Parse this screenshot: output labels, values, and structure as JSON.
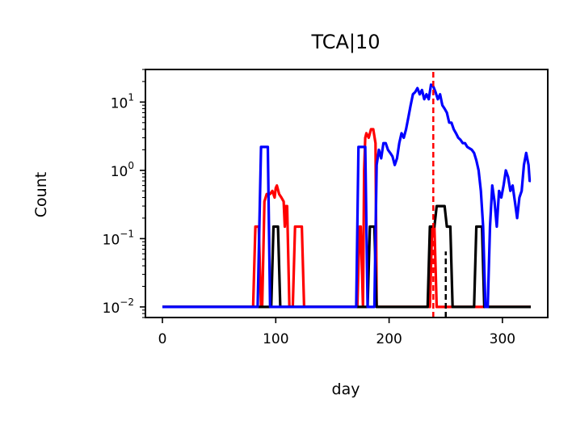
{
  "chart_data": {
    "type": "line",
    "title": "TCA|10",
    "xlabel": "day",
    "ylabel": "Count",
    "xlim": [
      -15,
      340
    ],
    "ylim": [
      0.007,
      30
    ],
    "yscale": "log",
    "grid": false,
    "x_ticks": [
      0,
      100,
      200,
      300
    ],
    "y_ticks": [
      {
        "value": 0.01,
        "base": "10",
        "exp": "−2"
      },
      {
        "value": 0.1,
        "base": "10",
        "exp": "−1"
      },
      {
        "value": 1,
        "base": "10",
        "exp": "0"
      },
      {
        "value": 10,
        "base": "10",
        "exp": "1"
      }
    ],
    "vlines": [
      {
        "x": 239,
        "color": "#ff0000",
        "style": "dashed",
        "y_range": [
          0.007,
          30
        ]
      },
      {
        "x": 250,
        "color": "#000000",
        "style": "dashed",
        "y_range": [
          0.007,
          0.065
        ]
      }
    ],
    "series": [
      {
        "color": "#ff0000",
        "points": [
          [
            0,
            0.01
          ],
          [
            80,
            0.01
          ],
          [
            82,
            0.15
          ],
          [
            85,
            0.15
          ],
          [
            87,
            0.01
          ],
          [
            88,
            0.01
          ],
          [
            90,
            0.35
          ],
          [
            92,
            0.45
          ],
          [
            95,
            0.45
          ],
          [
            97,
            0.5
          ],
          [
            99,
            0.4
          ],
          [
            100,
            0.55
          ],
          [
            101,
            0.6
          ],
          [
            103,
            0.45
          ],
          [
            105,
            0.4
          ],
          [
            107,
            0.35
          ],
          [
            108,
            0.15
          ],
          [
            109,
            0.3
          ],
          [
            110,
            0.3
          ],
          [
            112,
            0.01
          ],
          [
            115,
            0.01
          ],
          [
            117,
            0.15
          ],
          [
            123,
            0.15
          ],
          [
            125,
            0.01
          ],
          [
            172,
            0.01
          ],
          [
            174,
            0.15
          ],
          [
            175,
            0.15
          ],
          [
            177,
            0.01
          ],
          [
            178,
            1.0
          ],
          [
            179,
            3.0
          ],
          [
            180,
            3.5
          ],
          [
            182,
            3.0
          ],
          [
            184,
            4.0
          ],
          [
            186,
            4.0
          ],
          [
            188,
            2.5
          ],
          [
            189,
            0.01
          ],
          [
            236,
            0.01
          ],
          [
            238,
            0.15
          ],
          [
            240,
            0.15
          ],
          [
            242,
            0.01
          ],
          [
            325,
            0.01
          ]
        ]
      },
      {
        "color": "#000000",
        "points": [
          [
            0,
            0.01
          ],
          [
            96,
            0.01
          ],
          [
            98,
            0.15
          ],
          [
            102,
            0.15
          ],
          [
            104,
            0.01
          ],
          [
            181,
            0.01
          ],
          [
            183,
            0.15
          ],
          [
            187,
            0.15
          ],
          [
            189,
            0.01
          ],
          [
            234,
            0.01
          ],
          [
            236,
            0.15
          ],
          [
            240,
            0.15
          ],
          [
            242,
            0.3
          ],
          [
            245,
            0.3
          ],
          [
            247,
            0.3
          ],
          [
            249,
            0.3
          ],
          [
            251,
            0.15
          ],
          [
            254,
            0.15
          ],
          [
            256,
            0.01
          ],
          [
            275,
            0.01
          ],
          [
            277,
            0.15
          ],
          [
            282,
            0.15
          ],
          [
            284,
            0.01
          ],
          [
            325,
            0.01
          ]
        ]
      },
      {
        "color": "#0000ff",
        "points": [
          [
            0,
            0.01
          ],
          [
            84,
            0.01
          ],
          [
            87,
            2.2
          ],
          [
            93,
            2.2
          ],
          [
            95,
            0.01
          ],
          [
            171,
            0.01
          ],
          [
            173,
            2.2
          ],
          [
            179,
            2.2
          ],
          [
            181,
            0.01
          ],
          [
            185,
            0.01
          ],
          [
            187,
            0.01
          ],
          [
            189,
            1.2
          ],
          [
            191,
            2.0
          ],
          [
            193,
            1.5
          ],
          [
            195,
            2.5
          ],
          [
            197,
            2.5
          ],
          [
            199,
            2.0
          ],
          [
            201,
            1.8
          ],
          [
            203,
            1.6
          ],
          [
            205,
            1.2
          ],
          [
            207,
            1.5
          ],
          [
            209,
            2.5
          ],
          [
            211,
            3.5
          ],
          [
            213,
            3.0
          ],
          [
            215,
            4.0
          ],
          [
            217,
            6.0
          ],
          [
            219,
            9.0
          ],
          [
            221,
            13.0
          ],
          [
            223,
            14.0
          ],
          [
            225,
            16.0
          ],
          [
            227,
            13.0
          ],
          [
            229,
            15.0
          ],
          [
            231,
            11.0
          ],
          [
            233,
            13.0
          ],
          [
            235,
            11.0
          ],
          [
            237,
            18.0
          ],
          [
            239,
            17.0
          ],
          [
            241,
            14.0
          ],
          [
            243,
            11.0
          ],
          [
            245,
            13.0
          ],
          [
            247,
            9.0
          ],
          [
            249,
            8.0
          ],
          [
            251,
            7.0
          ],
          [
            253,
            5.0
          ],
          [
            255,
            5.0
          ],
          [
            257,
            4.0
          ],
          [
            259,
            3.5
          ],
          [
            261,
            3.0
          ],
          [
            263,
            2.8
          ],
          [
            265,
            2.5
          ],
          [
            267,
            2.5
          ],
          [
            269,
            2.2
          ],
          [
            271,
            2.1
          ],
          [
            273,
            2.0
          ],
          [
            275,
            1.8
          ],
          [
            277,
            1.4
          ],
          [
            279,
            1.0
          ],
          [
            281,
            0.5
          ],
          [
            283,
            0.15
          ],
          [
            285,
            0.01
          ],
          [
            287,
            0.01
          ],
          [
            289,
            0.15
          ],
          [
            291,
            0.6
          ],
          [
            293,
            0.35
          ],
          [
            295,
            0.15
          ],
          [
            297,
            0.5
          ],
          [
            299,
            0.4
          ],
          [
            301,
            0.6
          ],
          [
            303,
            1.0
          ],
          [
            305,
            0.8
          ],
          [
            307,
            0.5
          ],
          [
            309,
            0.6
          ],
          [
            311,
            0.35
          ],
          [
            313,
            0.2
          ],
          [
            315,
            0.4
          ],
          [
            317,
            0.5
          ],
          [
            319,
            1.2
          ],
          [
            321,
            1.8
          ],
          [
            323,
            1.2
          ],
          [
            324,
            0.7
          ],
          [
            325,
            0.7
          ]
        ]
      }
    ]
  }
}
